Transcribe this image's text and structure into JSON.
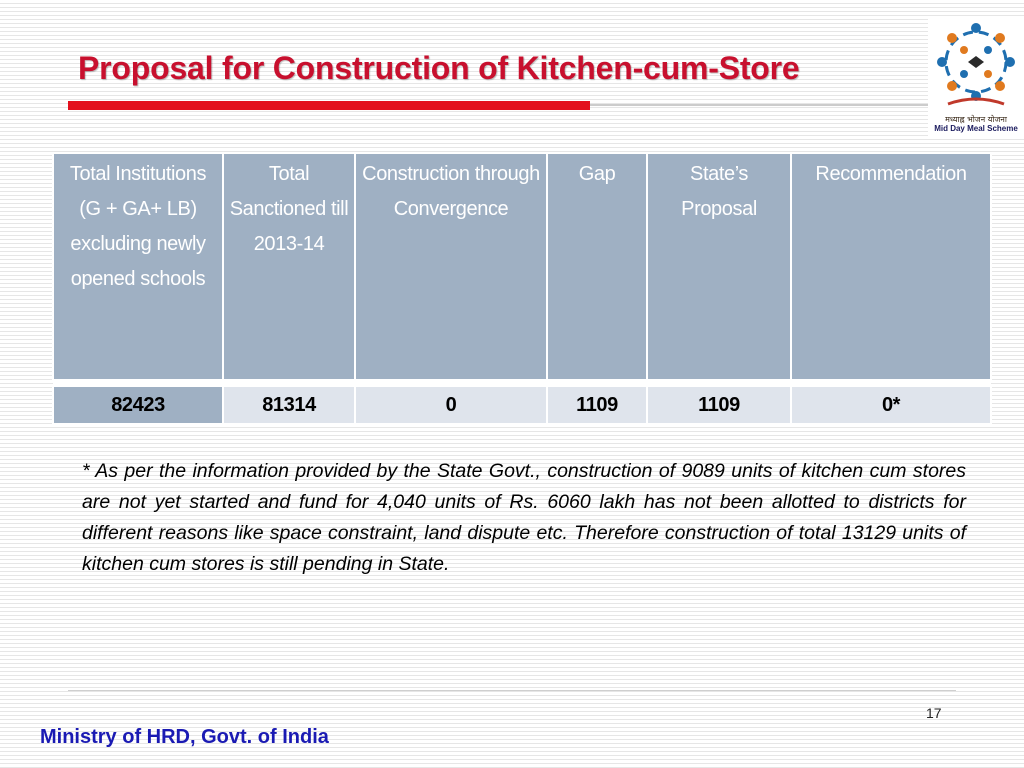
{
  "slide": {
    "title": "Proposal for Construction of Kitchen-cum-Store",
    "page_number": "17",
    "footer": "Ministry of HRD, Govt. of India"
  },
  "logo": {
    "hindi_text": "मध्याह्न भोजन योजना",
    "english_text": "Mid Day Meal Scheme"
  },
  "table": {
    "headers": [
      "Total Institutions (G + GA+ LB) excluding newly opened schools",
      "Total Sanctioned till 2013-14",
      "Construction through Convergence",
      "Gap",
      "State’s Proposal",
      "Recommendation"
    ],
    "rows": [
      [
        "82423",
        "81314",
        "0",
        "1109",
        "1109",
        "0*"
      ]
    ]
  },
  "footnote": "* As per the information provided by the State Govt., construction of 9089 units of kitchen cum stores are not yet started and fund for 4,040 units of Rs. 6060 lakh has not been allotted to districts for different reasons like space constraint, land dispute etc. Therefore construction of total 13129 units of kitchen cum stores is still pending in State.",
  "colors": {
    "title": "#c8102e",
    "rule": "#e3101d",
    "header_bg": "#9fb0c3",
    "row_bg": "#dfe4ec",
    "footer_text": "#1a1ab3"
  }
}
